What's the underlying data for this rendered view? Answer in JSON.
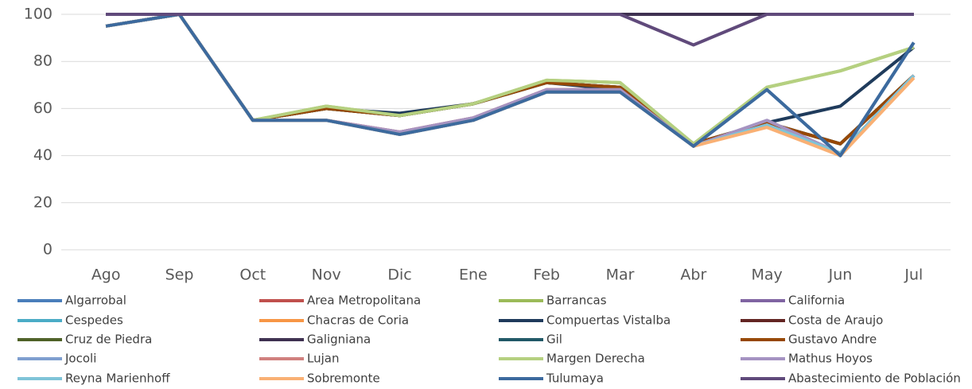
{
  "chart_data": {
    "type": "line",
    "categories": [
      "Ago",
      "Sep",
      "Oct",
      "Nov",
      "Dic",
      "Ene",
      "Feb",
      "Mar",
      "Abr",
      "May",
      "Jun",
      "Jul"
    ],
    "ylim": [
      0,
      100
    ],
    "yticks": [
      0,
      20,
      40,
      60,
      80,
      100
    ],
    "grid": true,
    "series": [
      {
        "name": "Algarrobal",
        "color": "#4a7ebb",
        "values": [
          95,
          100,
          55,
          55,
          49,
          55,
          67,
          67,
          44,
          68,
          40,
          88
        ]
      },
      {
        "name": "Area Metropolitana",
        "color": "#c0504d",
        "values": [
          95,
          100,
          55,
          55,
          50,
          56,
          68,
          68,
          44,
          53,
          41,
          74
        ]
      },
      {
        "name": "Barrancas",
        "color": "#9bbb59",
        "values": [
          95,
          100,
          55,
          61,
          57,
          62,
          72,
          71,
          45,
          69,
          76,
          86
        ]
      },
      {
        "name": "California",
        "color": "#8064a2",
        "values": [
          100,
          100,
          100,
          100,
          100,
          100,
          100,
          100,
          100,
          100,
          100,
          100
        ]
      },
      {
        "name": "Cespedes",
        "color": "#4bacc6",
        "values": [
          95,
          100,
          55,
          55,
          49,
          55,
          67,
          67,
          44,
          53,
          41,
          74
        ]
      },
      {
        "name": "Chacras de Coria",
        "color": "#f79646",
        "values": [
          95,
          100,
          55,
          55,
          49,
          55,
          67,
          67,
          44,
          53,
          41,
          73
        ]
      },
      {
        "name": "Compuertas Vistalba",
        "color": "#1f3b5c",
        "values": [
          95,
          100,
          55,
          60,
          58,
          62,
          71,
          68,
          45,
          54,
          61,
          86
        ]
      },
      {
        "name": "Costa de Araujo",
        "color": "#632523",
        "values": [
          95,
          100,
          55,
          60,
          57,
          62,
          71,
          69,
          45,
          54,
          45,
          74
        ]
      },
      {
        "name": "Cruz de Piedra",
        "color": "#4f6228",
        "values": [
          95,
          100,
          55,
          60,
          57,
          62,
          71,
          69,
          45,
          54,
          45,
          74
        ]
      },
      {
        "name": "Galigniana",
        "color": "#3f3151",
        "values": [
          100,
          100,
          100,
          100,
          100,
          100,
          100,
          100,
          100,
          100,
          100,
          100
        ]
      },
      {
        "name": "Gil",
        "color": "#215967",
        "values": [
          95,
          100,
          55,
          60,
          57,
          62,
          71,
          69,
          45,
          54,
          45,
          74
        ]
      },
      {
        "name": "Gustavo Andre",
        "color": "#974806",
        "values": [
          95,
          100,
          55,
          60,
          57,
          62,
          71,
          69,
          45,
          54,
          45,
          74
        ]
      },
      {
        "name": "Jocoli",
        "color": "#7f9fcf",
        "values": [
          95,
          100,
          55,
          55,
          49,
          55,
          67,
          67,
          44,
          53,
          41,
          74
        ]
      },
      {
        "name": "Lujan",
        "color": "#d0807e",
        "values": [
          95,
          100,
          55,
          55,
          50,
          56,
          68,
          68,
          44,
          53,
          41,
          74
        ]
      },
      {
        "name": "Margen Derecha",
        "color": "#b5d080",
        "values": [
          95,
          100,
          55,
          61,
          57,
          62,
          72,
          71,
          45,
          69,
          76,
          86
        ]
      },
      {
        "name": "Mathus Hoyos",
        "color": "#a593c2",
        "values": [
          95,
          100,
          55,
          55,
          50,
          56,
          68,
          68,
          44,
          55,
          41,
          74
        ]
      },
      {
        "name": "Reyna Marienhoff",
        "color": "#7fc4d8",
        "values": [
          95,
          100,
          55,
          55,
          49,
          55,
          67,
          67,
          44,
          53,
          41,
          74
        ]
      },
      {
        "name": "Sobremonte",
        "color": "#f9b074",
        "values": [
          95,
          100,
          55,
          55,
          49,
          55,
          67,
          67,
          44,
          52,
          40,
          73
        ]
      },
      {
        "name": "Tulumaya",
        "color": "#3c6a9e",
        "values": [
          95,
          100,
          55,
          55,
          49,
          55,
          67,
          67,
          44,
          68,
          40,
          88
        ]
      },
      {
        "name": "Abastecimiento de Población",
        "color": "#604a7b",
        "values": [
          100,
          100,
          100,
          100,
          100,
          100,
          100,
          100,
          87,
          100,
          100,
          100
        ]
      }
    ]
  }
}
